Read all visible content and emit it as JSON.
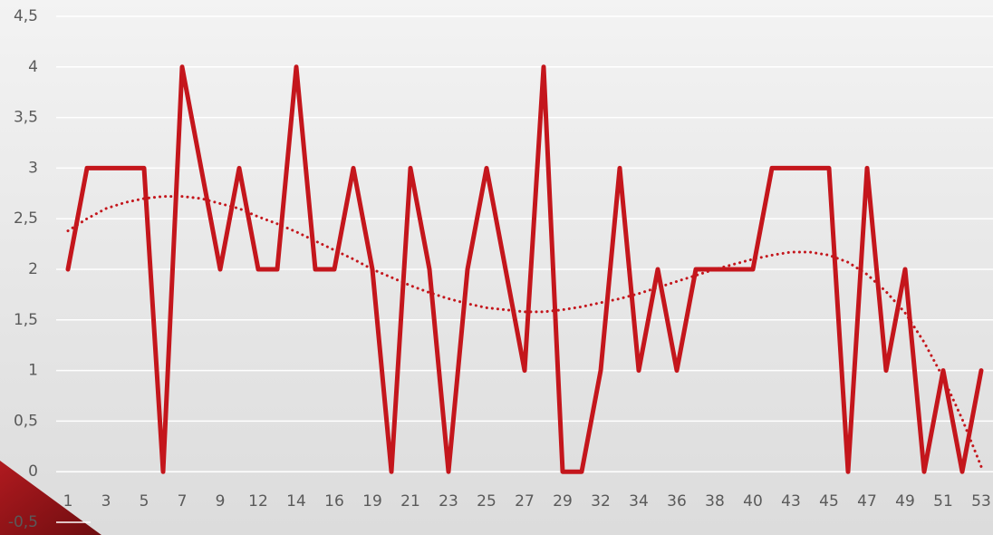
{
  "chart_data": {
    "type": "line",
    "categories": [
      "1",
      null,
      "3",
      null,
      "5",
      null,
      "7",
      null,
      "9",
      null,
      "12",
      null,
      "14",
      null,
      "16",
      null,
      "19",
      null,
      "21",
      null,
      "23",
      null,
      "25",
      null,
      "27",
      null,
      "29",
      null,
      "32",
      null,
      "34",
      null,
      "36",
      null,
      "38",
      null,
      "40",
      null,
      "43",
      null,
      "45",
      null,
      "47",
      null,
      "49",
      null,
      "51",
      null,
      "53"
    ],
    "series": [
      {
        "color": "#c4161c",
        "style": "solid",
        "values": [
          2,
          3,
          3,
          3,
          3,
          0,
          4,
          3,
          2,
          3,
          2,
          2,
          4,
          2,
          2,
          3,
          2,
          0,
          3,
          2,
          0,
          2,
          3,
          2,
          1,
          4,
          0,
          0,
          1,
          3,
          1,
          2,
          1,
          2,
          2,
          2,
          2,
          3,
          3,
          3,
          3,
          0,
          3,
          1,
          2,
          0,
          1,
          0,
          1
        ]
      },
      {
        "color": "#c4161c",
        "style": "dotted",
        "values": [
          2.38,
          2.5,
          2.6,
          2.66,
          2.7,
          2.72,
          2.72,
          2.7,
          2.65,
          2.6,
          2.52,
          2.45,
          2.37,
          2.28,
          2.19,
          2.1,
          2.0,
          1.92,
          1.84,
          1.77,
          1.71,
          1.66,
          1.62,
          1.6,
          1.58,
          1.58,
          1.6,
          1.63,
          1.67,
          1.71,
          1.76,
          1.82,
          1.88,
          1.94,
          2.0,
          2.05,
          2.1,
          2.14,
          2.17,
          2.17,
          2.14,
          2.07,
          1.95,
          1.78,
          1.57,
          1.28,
          0.93,
          0.52,
          0.05
        ]
      }
    ],
    "ylim": [
      -0.5,
      4.5
    ],
    "yticks": [
      {
        "value": -0.5,
        "label": "-0,5"
      },
      0,
      {
        "value": 0.5,
        "label": "0,5"
      },
      1,
      {
        "value": 1.5,
        "label": "1,5"
      },
      2,
      {
        "value": 2.5,
        "label": "2,5"
      },
      3,
      {
        "value": 3.5,
        "label": "3,5"
      },
      4,
      {
        "value": 4.5,
        "label": "4,5"
      }
    ],
    "grid": true
  }
}
